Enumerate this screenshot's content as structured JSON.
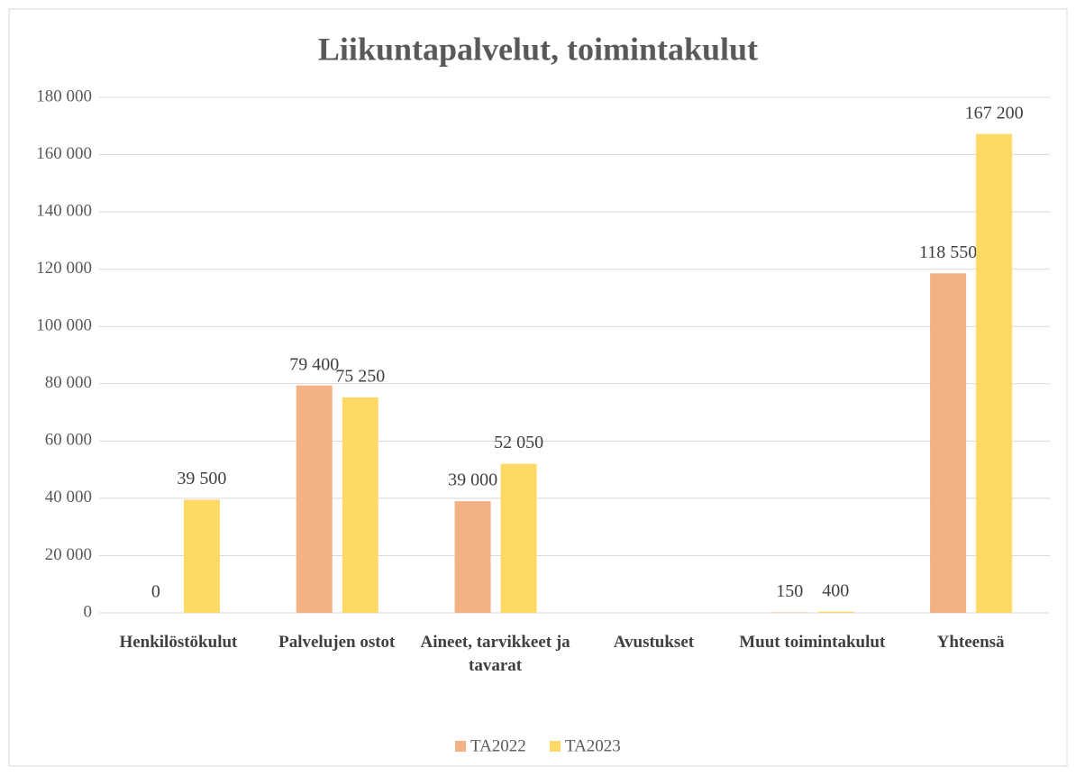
{
  "chart_data": {
    "type": "bar",
    "title": "Liikuntapalvelut, toimintakulut",
    "categories": [
      "Henkilöstökulut",
      "Palvelujen ostot",
      "Aineet, tarvikkeet ja tavarat",
      "Avustukset",
      "Muut toimintakulut",
      "Yhteensä"
    ],
    "series": [
      {
        "name": "TA2022",
        "color": "#f4b183",
        "values": [
          0,
          79400,
          39000,
          null,
          150,
          118550
        ],
        "value_labels": [
          "0",
          "79 400",
          "39 000",
          null,
          "150",
          "118 550"
        ]
      },
      {
        "name": "TA2023",
        "color": "#ffd966",
        "values": [
          39500,
          75250,
          52050,
          null,
          400,
          167200
        ],
        "value_labels": [
          "39 500",
          "75 250",
          "52 050",
          null,
          "400",
          "167 200"
        ]
      }
    ],
    "ylim": [
      0,
      180000
    ],
    "yticks": [
      0,
      {
        "value": 20000,
        "label": "20 000"
      },
      {
        "value": 40000,
        "label": "40 000"
      },
      {
        "value": 60000,
        "label": "60 000"
      },
      {
        "value": 80000,
        "label": "80 000"
      },
      {
        "value": 100000,
        "label": "100 000"
      },
      {
        "value": 120000,
        "label": "120 000"
      },
      {
        "value": 140000,
        "label": "140 000"
      },
      {
        "value": 160000,
        "label": "160 000"
      },
      {
        "value": 180000,
        "label": "180 000"
      }
    ],
    "grid": true,
    "legend": "bottom"
  }
}
